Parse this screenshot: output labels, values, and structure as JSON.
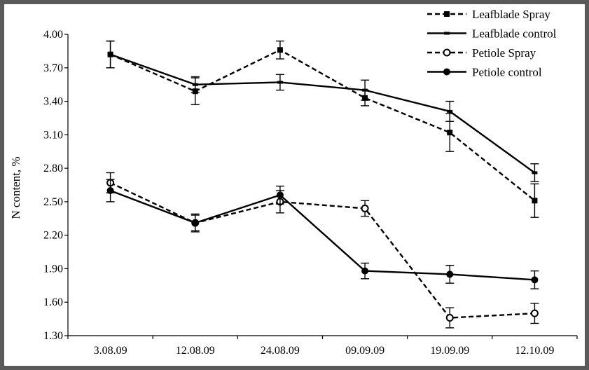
{
  "chart_data": {
    "type": "line",
    "title": "",
    "xlabel": "",
    "ylabel": "N content, %",
    "ylim": [
      1.3,
      4.0
    ],
    "ytick_step": 0.3,
    "ytick_labels": [
      "1.30",
      "1.60",
      "1.90",
      "2.20",
      "2.50",
      "2.80",
      "3.10",
      "3.40",
      "3.70",
      "4.00"
    ],
    "categories": [
      "3.08.09",
      "12.08.09",
      "24.08.09",
      "09.09.09",
      "19.09.09",
      "12.10.09"
    ],
    "grid": false,
    "legend_position": "top-right",
    "series": [
      {
        "name": "Leafblade Spray",
        "style": "dashed",
        "marker": "square",
        "color": "#000000",
        "values": [
          3.82,
          3.49,
          3.86,
          3.43,
          3.12,
          2.51
        ],
        "errors": [
          0.12,
          0.12,
          0.08,
          0.07,
          0.17,
          0.15
        ]
      },
      {
        "name": "Leafblade control",
        "style": "solid",
        "marker": "dash",
        "color": "#000000",
        "values": [
          3.82,
          3.55,
          3.57,
          3.5,
          3.31,
          2.76
        ],
        "errors": [
          0.12,
          0.07,
          0.07,
          0.09,
          0.09,
          0.08
        ]
      },
      {
        "name": "Petiole Spray",
        "style": "dashed",
        "marker": "circle-open",
        "color": "#000000",
        "values": [
          2.67,
          2.31,
          2.5,
          2.44,
          1.46,
          1.5
        ],
        "errors": [
          0.09,
          0.08,
          0.1,
          0.07,
          0.09,
          0.09
        ]
      },
      {
        "name": "Petiole control",
        "style": "solid",
        "marker": "circle",
        "color": "#000000",
        "values": [
          2.6,
          2.31,
          2.56,
          1.88,
          1.85,
          1.8
        ],
        "errors": [
          0.1,
          0.07,
          0.08,
          0.07,
          0.08,
          0.08
        ]
      }
    ]
  }
}
